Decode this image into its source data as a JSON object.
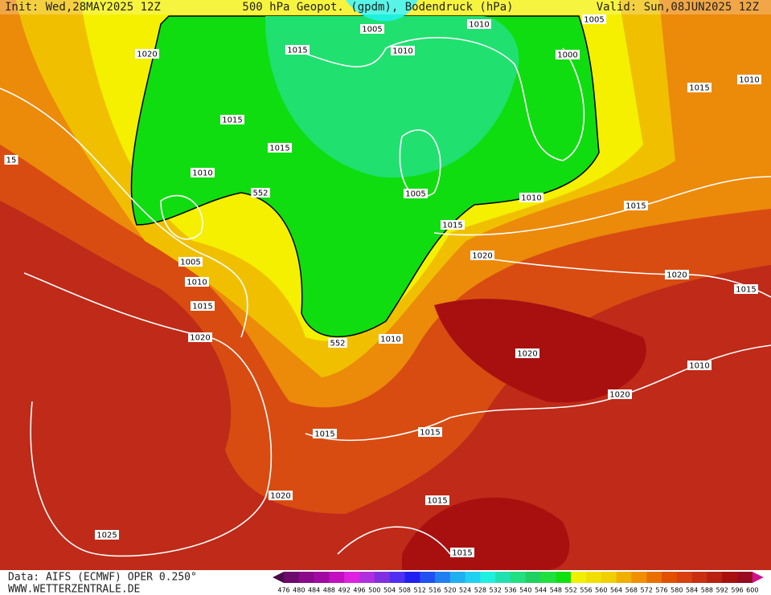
{
  "header": {
    "init": "Init: Wed,28MAY2025 12Z",
    "title": "500 hPa Geopot. (gpdm), Bodendruck (hPa)",
    "valid": "Valid: Sun,08JUN2025 12Z"
  },
  "footer": {
    "data": "Data: AIFS (ECMWF) OPER 0.250°",
    "site": "WWW.WETTERZENTRALE.DE"
  },
  "isobar_labels": [
    "1005",
    "1010",
    "1005",
    "1020",
    "1015",
    "1010",
    "1000",
    "1015",
    "1010",
    "1015",
    "1015",
    "1010",
    "552",
    "1005",
    "1010",
    "1015",
    "1015",
    "1020",
    "1005",
    "1010",
    "1015",
    "1020",
    "1015",
    "1020",
    "552",
    "1010",
    "1020",
    "1010",
    "1020",
    "1015",
    "1015",
    "1020",
    "1015",
    "1025",
    "1015",
    "15"
  ],
  "legend": {
    "labels": [
      476,
      480,
      484,
      488,
      492,
      496,
      500,
      504,
      508,
      512,
      516,
      520,
      524,
      528,
      532,
      536,
      540,
      544,
      548,
      552,
      556,
      560,
      564,
      568,
      572,
      576,
      580,
      584,
      588,
      592,
      596,
      600
    ],
    "colors": [
      "#4a0a4a",
      "#6d0a6d",
      "#8a0a8a",
      "#a00aa0",
      "#c010c0",
      "#e020e0",
      "#b030e0",
      "#8030e0",
      "#5030f0",
      "#2020f0",
      "#2050f0",
      "#2080f0",
      "#20b0f0",
      "#20d0f0",
      "#20f0e0",
      "#20e0b0",
      "#20e080",
      "#20d060",
      "#20e040",
      "#10e010",
      "#f0f000",
      "#f0e000",
      "#f0d000",
      "#f0b000",
      "#f09000",
      "#e87000",
      "#e05000",
      "#d84010",
      "#c83010",
      "#b82010",
      "#a81010",
      "#980a20",
      "#d0108a"
    ]
  }
}
